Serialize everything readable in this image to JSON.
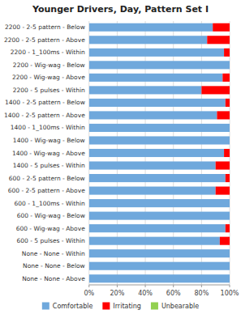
{
  "chart_data": {
    "type": "bar",
    "orientation": "horizontal",
    "stacked": true,
    "title": "Younger Drivers, Day, Pattern Set I",
    "categories": [
      "2200 - 2-5 pattern - Below",
      "2200 - 2-5 pattern - Above",
      "2200 - 1_100ms - Within",
      "2200 - Wig-wag - Below",
      "2200 - Wig-wag - Above",
      "2200 - 5 pulses - Within",
      "1400 - 2-5 pattern - Below",
      "1400 - 2-5 pattern - Above",
      "1400 - 1_100ms - Within",
      "1400 - Wig-wag - Below",
      "1400 - Wig-wag - Above",
      "1400 - 5 pulses - Within",
      "600 - 2-5 pattern - Below",
      "600 - 2-5 pattern - Above",
      "600 - 1_100ms - Within",
      "600 - Wig-wag - Below",
      "600 - Wig-wag - Above",
      "600 - 5 pulses - Within",
      "None - None - Within",
      "None - None - Below",
      "None - None - Above"
    ],
    "series": [
      {
        "name": "Comfortable",
        "color": "#6fa8dc",
        "values": [
          88,
          84,
          96,
          100,
          95,
          80,
          97,
          91,
          100,
          100,
          96,
          90,
          97,
          90,
          100,
          100,
          97,
          93,
          100,
          100,
          100
        ]
      },
      {
        "name": "Irritating",
        "color": "#ff0000",
        "values": [
          12,
          16,
          4,
          0,
          5,
          20,
          3,
          9,
          0,
          0,
          4,
          10,
          3,
          10,
          0,
          0,
          3,
          7,
          0,
          0,
          0
        ]
      },
      {
        "name": "Unbearable",
        "color": "#92d050",
        "values": [
          0,
          0,
          0,
          0,
          0,
          0,
          0,
          0,
          0,
          0,
          0,
          0,
          0,
          0,
          0,
          0,
          0,
          0,
          0,
          0,
          0
        ]
      }
    ],
    "xlim": [
      0,
      100
    ],
    "xticks": [
      {
        "value": 0,
        "label": "0%"
      },
      {
        "value": 20,
        "label": "20%"
      },
      {
        "value": 40,
        "label": "40%"
      },
      {
        "value": 60,
        "label": "60%"
      },
      {
        "value": 80,
        "label": "80%"
      },
      {
        "value": 100,
        "label": "100%"
      }
    ],
    "grid": true,
    "legend": "bottom"
  }
}
